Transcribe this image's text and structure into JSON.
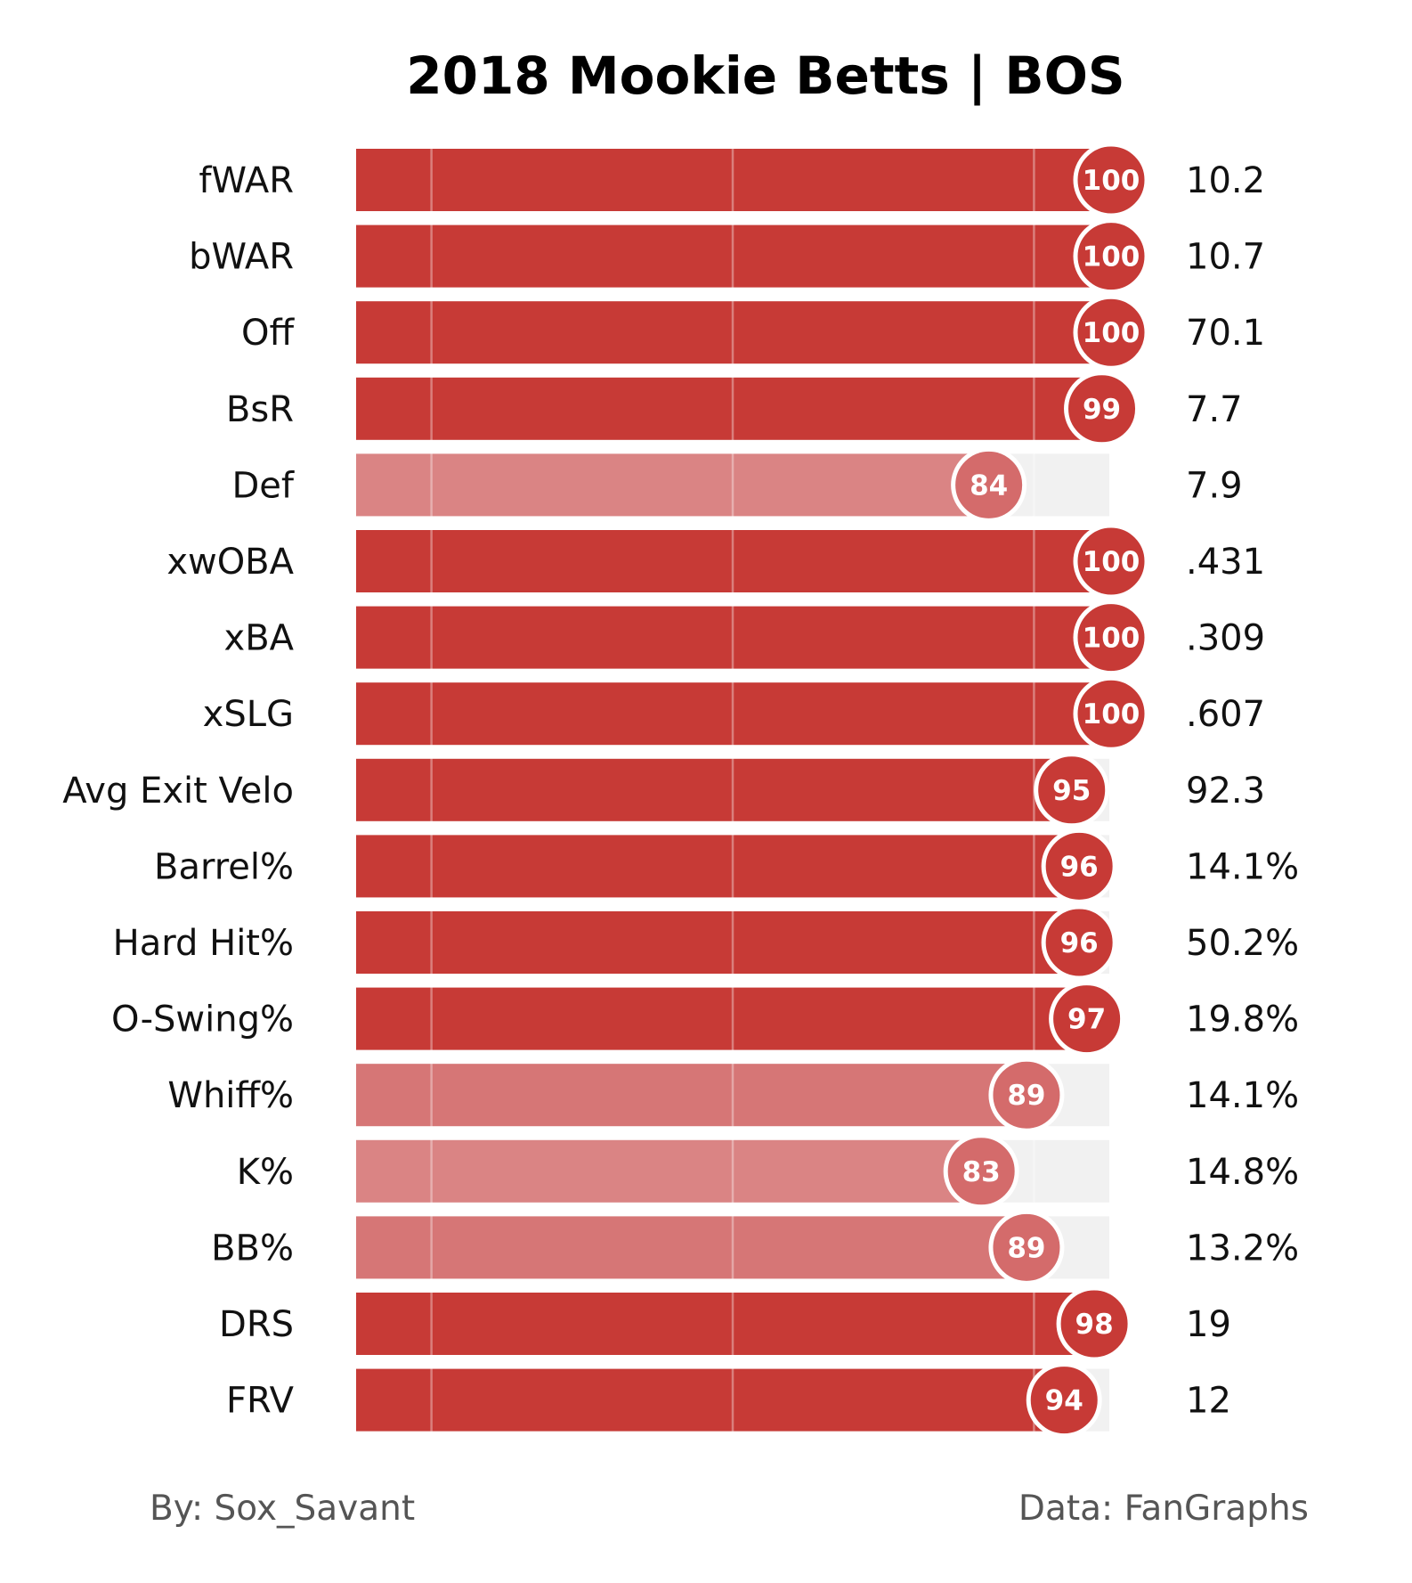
{
  "chart_data": {
    "type": "bar",
    "orientation": "horizontal",
    "title": "2018 Mookie Betts | BOS",
    "xlim": [
      0,
      100
    ],
    "gridlines": [
      10,
      50,
      90
    ],
    "colors": {
      "bar_high": "#c73a36",
      "bar_low": "#d46b6b",
      "track": "#f1f1f1",
      "marker_stroke": "#ffffff",
      "gridline": "#ffffff"
    },
    "rows": [
      {
        "label": "fWAR",
        "percentile": 100,
        "value": "10.2"
      },
      {
        "label": "bWAR",
        "percentile": 100,
        "value": "10.7"
      },
      {
        "label": "Off",
        "percentile": 100,
        "value": "70.1"
      },
      {
        "label": "BsR",
        "percentile": 99,
        "value": "7.7"
      },
      {
        "label": "Def",
        "percentile": 84,
        "value": "7.9"
      },
      {
        "label": "xwOBA",
        "percentile": 100,
        "value": ".431"
      },
      {
        "label": "xBA",
        "percentile": 100,
        "value": ".309"
      },
      {
        "label": "xSLG",
        "percentile": 100,
        "value": ".607"
      },
      {
        "label": "Avg Exit Velo",
        "percentile": 95,
        "value": "92.3"
      },
      {
        "label": "Barrel%",
        "percentile": 96,
        "value": "14.1%"
      },
      {
        "label": "Hard Hit%",
        "percentile": 96,
        "value": "50.2%"
      },
      {
        "label": "O-Swing%",
        "percentile": 97,
        "value": "19.8%"
      },
      {
        "label": "Whiff%",
        "percentile": 89,
        "value": "14.1%"
      },
      {
        "label": "K%",
        "percentile": 83,
        "value": "14.8%"
      },
      {
        "label": "BB%",
        "percentile": 89,
        "value": "13.2%"
      },
      {
        "label": "DRS",
        "percentile": 98,
        "value": "19"
      },
      {
        "label": "FRV",
        "percentile": 94,
        "value": "12"
      }
    ]
  },
  "footer": {
    "credit": "By: Sox_Savant",
    "source": "Data: FanGraphs"
  }
}
